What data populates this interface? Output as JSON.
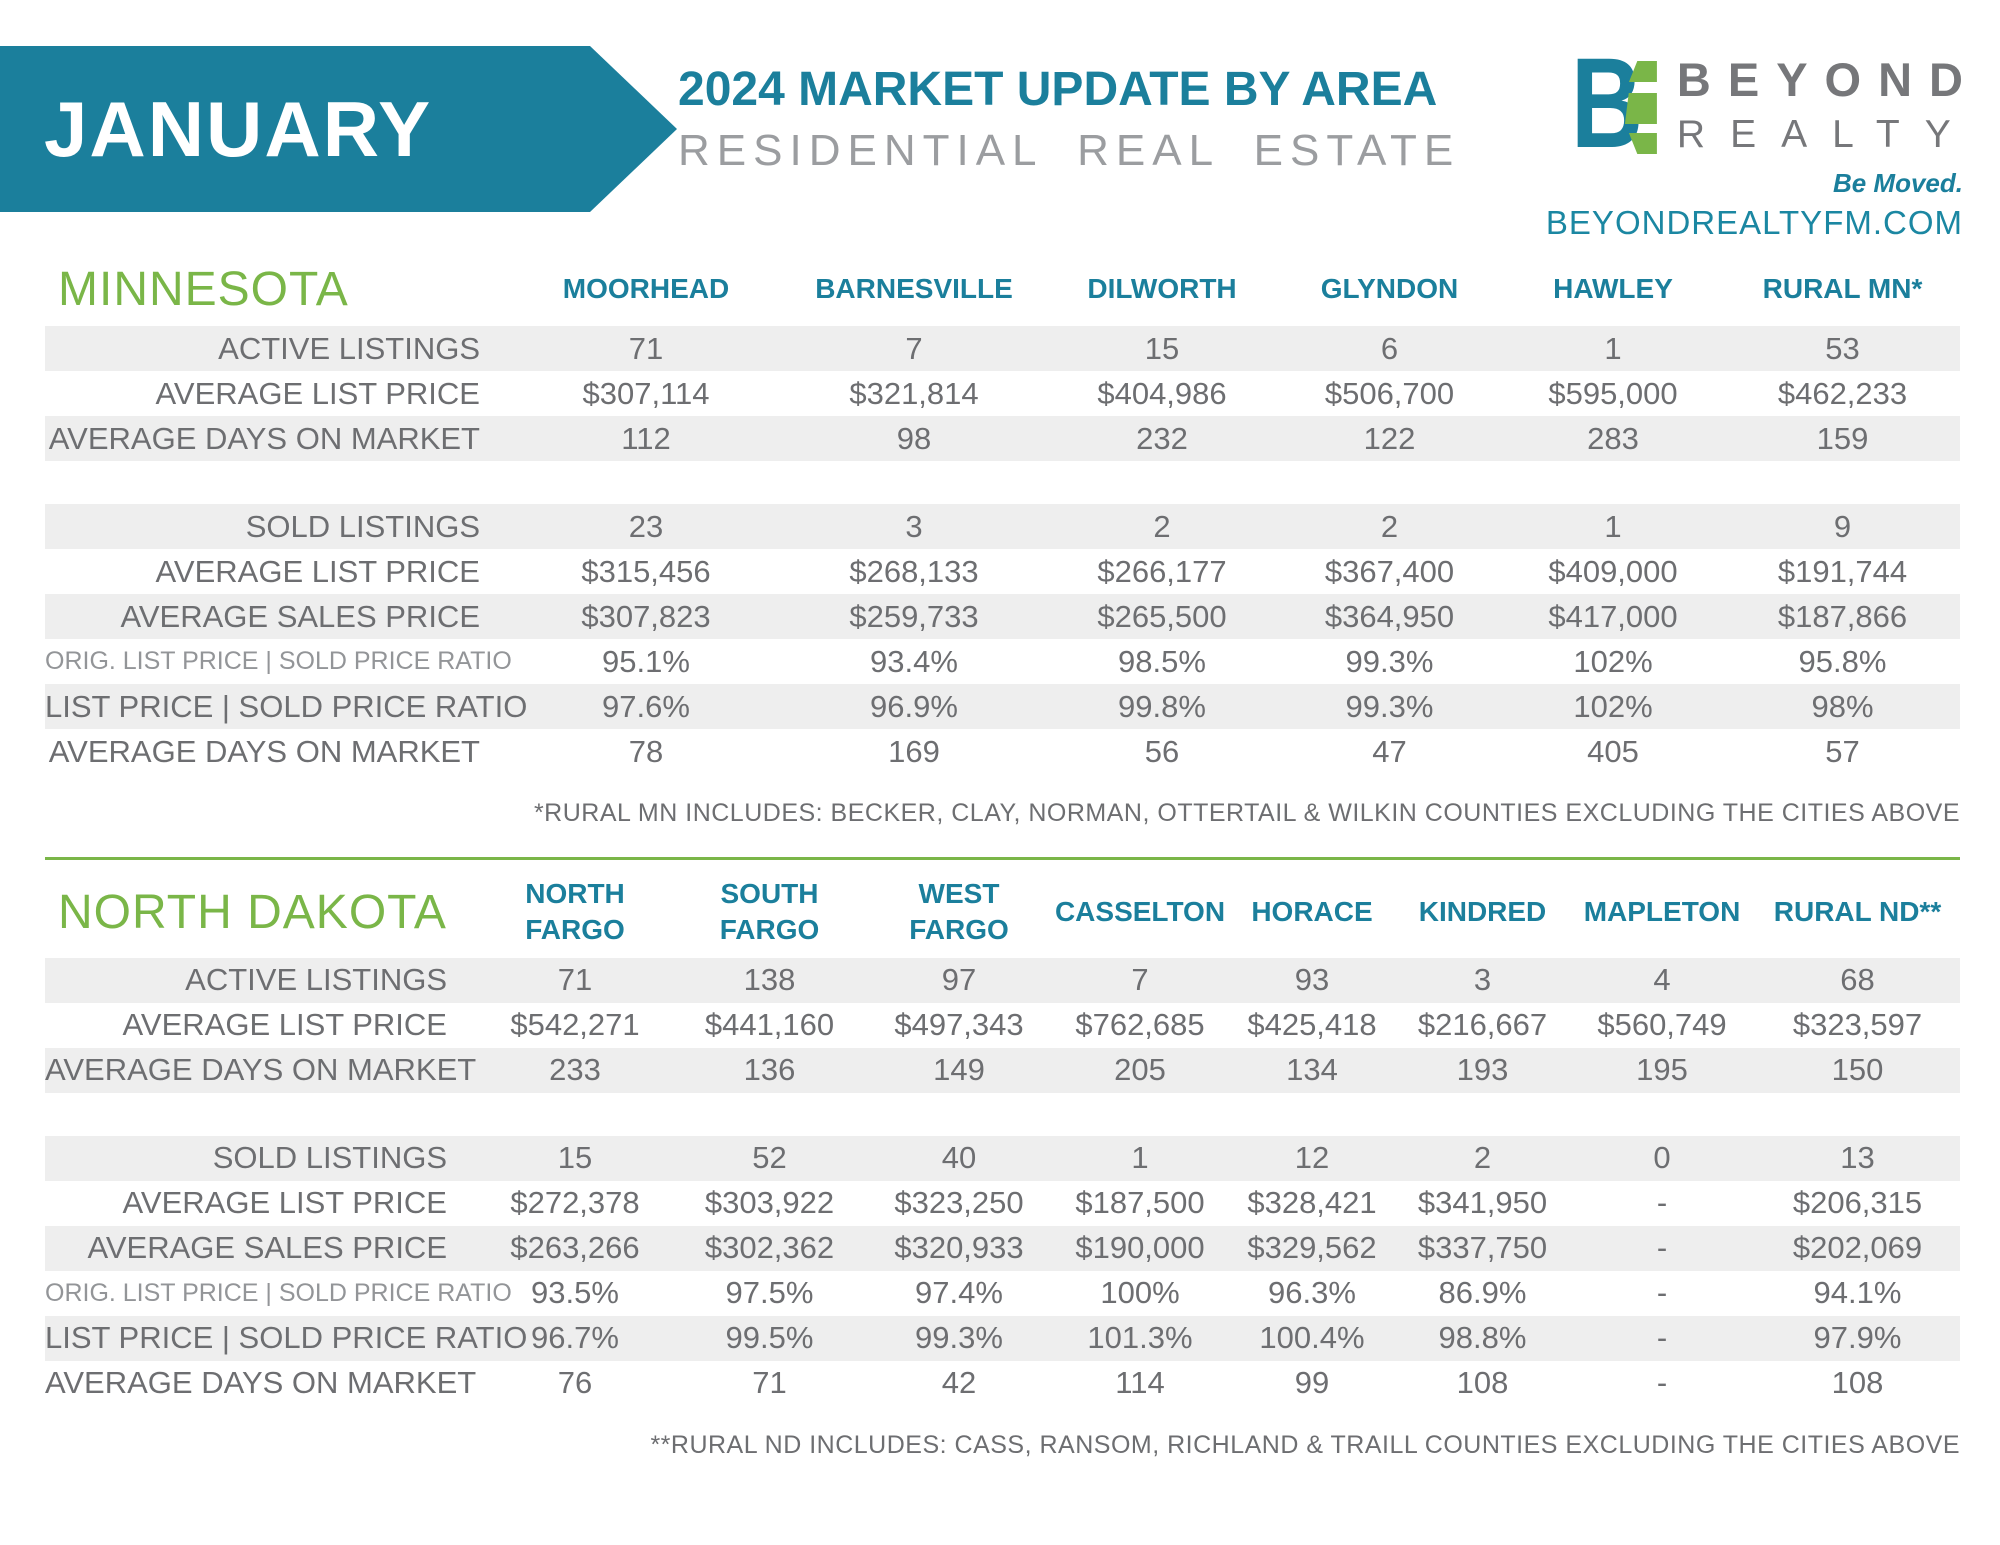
{
  "header": {
    "month": "JANUARY",
    "title": "2024 MARKET UPDATE BY AREA",
    "subtitle": "RESIDENTIAL REAL ESTATE",
    "colors": {
      "teal": "#1b7f9c",
      "green": "#7ab648",
      "text_gray": "#6d6e71",
      "stripe_gray": "#eeeeee"
    },
    "logo": {
      "monogram_b": "B",
      "monogram_e_icon": "green-e-bars-icon",
      "name_line1": "BEYOND",
      "name_line2": "REALTY",
      "tagline": "Be Moved.",
      "website": "BEYONDREALTYFM.COM"
    }
  },
  "tables": [
    {
      "id": "mn",
      "region": "MINNESOTA",
      "columns": [
        "MOORHEAD",
        "BARNESVILLE",
        "DILWORTH",
        "GLYNDON",
        "HAWLEY",
        "RURAL MN*"
      ],
      "sections": [
        {
          "rows": [
            {
              "label": "ACTIVE LISTINGS",
              "values": [
                "71",
                "7",
                "15",
                "6",
                "1",
                "53"
              ]
            },
            {
              "label": "AVERAGE LIST PRICE",
              "values": [
                "$307,114",
                "$321,814",
                "$404,986",
                "$506,700",
                "$595,000",
                "$462,233"
              ]
            },
            {
              "label": "AVERAGE DAYS ON MARKET",
              "values": [
                "112",
                "98",
                "232",
                "122",
                "283",
                "159"
              ]
            }
          ]
        },
        {
          "rows": [
            {
              "label": "SOLD LISTINGS",
              "values": [
                "23",
                "3",
                "2",
                "2",
                "1",
                "9"
              ]
            },
            {
              "label": "AVERAGE LIST PRICE",
              "values": [
                "$315,456",
                "$268,133",
                "$266,177",
                "$367,400",
                "$409,000",
                "$191,744"
              ]
            },
            {
              "label": "AVERAGE SALES PRICE",
              "values": [
                "$307,823",
                "$259,733",
                "$265,500",
                "$364,950",
                "$417,000",
                "$187,866"
              ]
            },
            {
              "label": "ORIG. LIST PRICE | SOLD PRICE RATIO",
              "small": true,
              "values": [
                "95.1%",
                "93.4%",
                "98.5%",
                "99.3%",
                "102%",
                "95.8%"
              ]
            },
            {
              "label": "LIST PRICE | SOLD PRICE RATIO",
              "values": [
                "97.6%",
                "96.9%",
                "99.8%",
                "99.3%",
                "102%",
                "98%"
              ]
            },
            {
              "label": "AVERAGE DAYS ON MARKET",
              "values": [
                "78",
                "169",
                "56",
                "47",
                "405",
                "57"
              ]
            }
          ]
        }
      ],
      "footnote": "*RURAL MN INCLUDES: BECKER, CLAY, NORMAN, OTTERTAIL & WILKIN COUNTIES EXCLUDING THE CITIES ABOVE"
    },
    {
      "id": "nd",
      "region": "NORTH DAKOTA",
      "columns": [
        "NORTH\nFARGO",
        "SOUTH\nFARGO",
        "WEST\nFARGO",
        "CASSELTON",
        "HORACE",
        "KINDRED",
        "MAPLETON",
        "RURAL ND**"
      ],
      "sections": [
        {
          "rows": [
            {
              "label": "ACTIVE LISTINGS",
              "values": [
                "71",
                "138",
                "97",
                "7",
                "93",
                "3",
                "4",
                "68"
              ]
            },
            {
              "label": "AVERAGE LIST PRICE",
              "values": [
                "$542,271",
                "$441,160",
                "$497,343",
                "$762,685",
                "$425,418",
                "$216,667",
                "$560,749",
                "$323,597"
              ]
            },
            {
              "label": "AVERAGE DAYS ON MARKET",
              "values": [
                "233",
                "136",
                "149",
                "205",
                "134",
                "193",
                "195",
                "150"
              ]
            }
          ]
        },
        {
          "rows": [
            {
              "label": "SOLD LISTINGS",
              "values": [
                "15",
                "52",
                "40",
                "1",
                "12",
                "2",
                "0",
                "13"
              ]
            },
            {
              "label": "AVERAGE LIST PRICE",
              "values": [
                "$272,378",
                "$303,922",
                "$323,250",
                "$187,500",
                "$328,421",
                "$341,950",
                "-",
                "$206,315"
              ]
            },
            {
              "label": "AVERAGE SALES PRICE",
              "values": [
                "$263,266",
                "$302,362",
                "$320,933",
                "$190,000",
                "$329,562",
                "$337,750",
                "-",
                "$202,069"
              ]
            },
            {
              "label": "ORIG. LIST PRICE | SOLD PRICE RATIO",
              "small": true,
              "values": [
                "93.5%",
                "97.5%",
                "97.4%",
                "100%",
                "96.3%",
                "86.9%",
                "-",
                "94.1%"
              ]
            },
            {
              "label": "LIST PRICE | SOLD PRICE RATIO",
              "values": [
                "96.7%",
                "99.5%",
                "99.3%",
                "101.3%",
                "100.4%",
                "98.8%",
                "-",
                "97.9%"
              ]
            },
            {
              "label": "AVERAGE DAYS ON MARKET",
              "values": [
                "76",
                "71",
                "42",
                "114",
                "99",
                "108",
                "-",
                "108"
              ]
            }
          ]
        }
      ],
      "footnote": "**RURAL ND INCLUDES: CASS, RANSOM, RICHLAND & TRAILL COUNTIES EXCLUDING THE CITIES ABOVE"
    }
  ]
}
